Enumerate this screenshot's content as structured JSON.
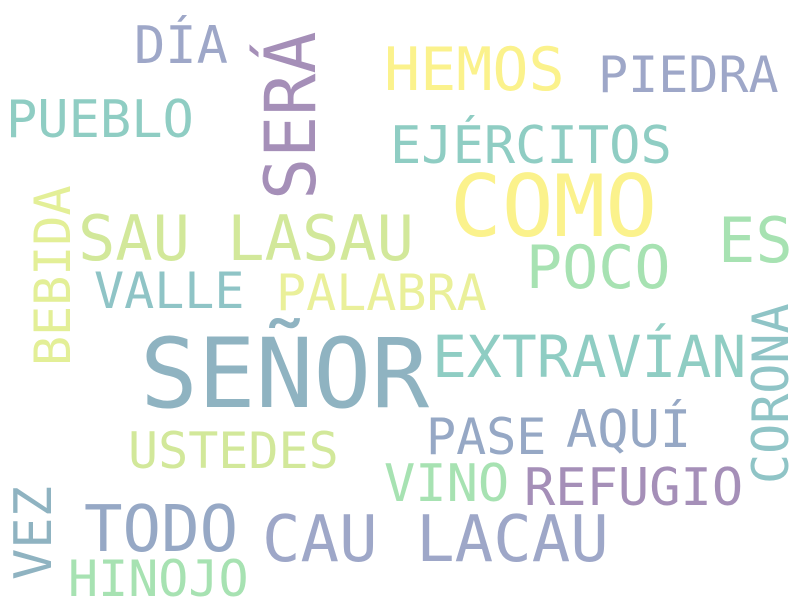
{
  "words": [
    {
      "id": "senor",
      "text": "SEÑOR",
      "color": "#8fb3c1"
    },
    {
      "id": "como",
      "text": "COMO",
      "color": "#fbf28c"
    },
    {
      "id": "sera",
      "text": "SERÁ",
      "color": "#a58fb8"
    },
    {
      "id": "sau-lasau",
      "text": "SAU LASAU",
      "color": "#d2e89a"
    },
    {
      "id": "cau-lacau",
      "text": "CAU LACAU",
      "color": "#9ea7c8"
    },
    {
      "id": "todo",
      "text": "TODO",
      "color": "#96a8c5"
    },
    {
      "id": "hemos",
      "text": "HEMOS",
      "color": "#fbf28c"
    },
    {
      "id": "poco",
      "text": "POCO",
      "color": "#a7e2b2"
    },
    {
      "id": "es",
      "text": "ES",
      "color": "#a7e2b2"
    },
    {
      "id": "extravian",
      "text": "EXTRAVÍAN",
      "color": "#8fcdc3"
    },
    {
      "id": "ejercitos",
      "text": "EJÉRCITOS",
      "color": "#8fcdc3"
    },
    {
      "id": "pueblo",
      "text": "PUEBLO",
      "color": "#8fcdc3"
    },
    {
      "id": "dia",
      "text": "DÍA",
      "color": "#9ea7c8"
    },
    {
      "id": "piedra",
      "text": "PIEDRA",
      "color": "#9ea7c8"
    },
    {
      "id": "valle",
      "text": "VALLE",
      "color": "#8fc4c6"
    },
    {
      "id": "palabra",
      "text": "PALABRA",
      "color": "#eaf09a"
    },
    {
      "id": "bebida",
      "text": "BEBIDA",
      "color": "#e3ef97"
    },
    {
      "id": "corona",
      "text": "CORONA",
      "color": "#8fc4c6"
    },
    {
      "id": "aqui",
      "text": "AQUÍ",
      "color": "#96a8c5"
    },
    {
      "id": "pase",
      "text": "PASE",
      "color": "#96a8c5"
    },
    {
      "id": "ustedes",
      "text": "USTEDES",
      "color": "#d2e89a"
    },
    {
      "id": "vino",
      "text": "VINO",
      "color": "#a7e2b2"
    },
    {
      "id": "refugio",
      "text": "REFUGIO",
      "color": "#a58fb8"
    },
    {
      "id": "vez",
      "text": "VEZ",
      "color": "#8fb3c1"
    },
    {
      "id": "hinojo",
      "text": "HINOJO",
      "color": "#a7e2b2"
    }
  ]
}
